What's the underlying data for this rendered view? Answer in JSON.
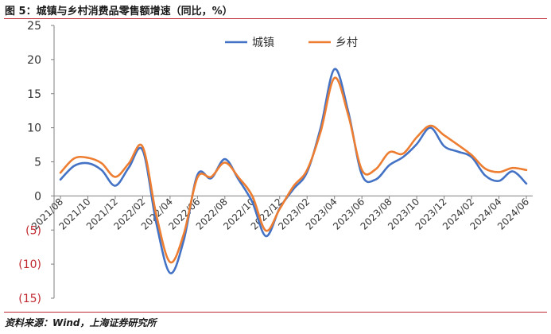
{
  "figure": {
    "title": "图 5：城镇与乡村消费品零售额增速（同比，%）",
    "source": "资料来源：Wind，上海证券研究所"
  },
  "colors": {
    "urban": "#4472c4",
    "rural": "#ed7d31",
    "rule": "#c0282f",
    "negative_label": "#c0282f"
  },
  "chart_data": {
    "type": "line",
    "title": "",
    "xlabel": "",
    "ylabel": "",
    "ylim": [
      -15,
      25
    ],
    "yticks": [
      25,
      20,
      15,
      10,
      5,
      0,
      -5,
      -10,
      -15
    ],
    "ytick_labels": [
      "25",
      "20",
      "15",
      "10",
      "5",
      "0",
      "(5)",
      "(10)",
      "(15)"
    ],
    "grid": false,
    "legend": "top-center",
    "x": [
      "2021/08",
      "2021/09",
      "2021/10",
      "2021/11",
      "2021/12",
      "2022/01",
      "2022/02",
      "2022/03",
      "2022/04",
      "2022/05",
      "2022/06",
      "2022/07",
      "2022/08",
      "2022/09",
      "2022/10",
      "2022/11",
      "2022/12",
      "2023/01",
      "2023/02",
      "2023/03",
      "2023/04",
      "2023/05",
      "2023/06",
      "2023/07",
      "2023/08",
      "2023/09",
      "2023/10",
      "2023/11",
      "2023/12",
      "2024/01",
      "2024/02",
      "2024/03",
      "2024/04",
      "2024/05",
      "2024/06"
    ],
    "xtick_labels": [
      "2021/08",
      "2021/10",
      "2021/12",
      "2022/02",
      "2022/04",
      "2022/06",
      "2022/08",
      "2022/10",
      "2022/12",
      "2023/02",
      "2023/04",
      "2023/06",
      "2023/08",
      "2023/10",
      "2023/12",
      "2024/02",
      "2024/04",
      "2024/06"
    ],
    "series": [
      {
        "name": "城镇",
        "values": [
          2.4,
          4.4,
          4.8,
          3.8,
          1.5,
          4.2,
          6.7,
          -4.0,
          -11.3,
          -6.5,
          3.1,
          2.6,
          5.4,
          2.4,
          -0.9,
          -5.9,
          -1.8,
          1.0,
          3.5,
          10.1,
          18.6,
          12.4,
          3.1,
          2.4,
          4.5,
          5.7,
          7.6,
          10.0,
          7.3,
          6.5,
          5.7,
          3.0,
          2.2,
          3.6,
          1.8
        ]
      },
      {
        "name": "乡村",
        "values": [
          3.4,
          5.5,
          5.6,
          4.8,
          2.8,
          4.8,
          7.2,
          -2.8,
          -9.7,
          -5.6,
          2.7,
          2.8,
          4.9,
          2.7,
          0.0,
          -5.1,
          -1.9,
          1.4,
          3.8,
          9.5,
          17.3,
          11.9,
          3.8,
          3.9,
          6.4,
          6.2,
          8.6,
          10.3,
          8.9,
          7.5,
          6.0,
          4.0,
          3.5,
          4.1,
          3.8
        ]
      }
    ]
  }
}
